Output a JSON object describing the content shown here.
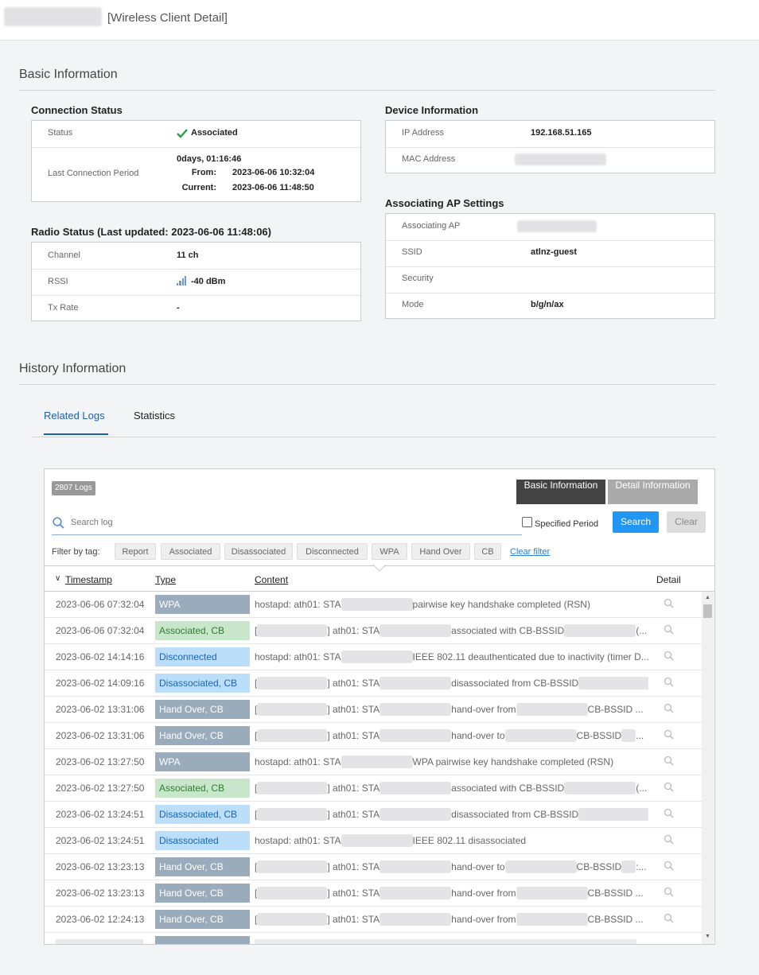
{
  "header": {
    "title": "[Wireless Client Detail]"
  },
  "basic": {
    "heading": "Basic Information",
    "connection": {
      "title": "Connection Status",
      "status_label": "Status",
      "status_value": "Associated",
      "period_label": "Last Connection Period",
      "period_value": "0days, 01:16:46",
      "from_label": "From:",
      "from_value": "2023-06-06 10:32:04",
      "current_label": "Current:",
      "current_value": "2023-06-06 11:48:50"
    },
    "radio": {
      "title": "Radio Status (Last updated: 2023-06-06 11:48:06)",
      "rows": [
        [
          "Channel",
          "11 ch"
        ],
        [
          "RSSI",
          "-40 dBm"
        ],
        [
          "Tx Rate",
          "-"
        ]
      ]
    },
    "device": {
      "title": "Device Information",
      "ip_label": "IP Address",
      "ip_value": "192.168.51.165",
      "mac_label": "MAC Address"
    },
    "ap": {
      "title": "Associating AP Settings",
      "ap_label": "Associating AP",
      "ssid_label": "SSID",
      "ssid_value": "atlnz-guest",
      "security_label": "Security",
      "mode_label": "Mode",
      "mode_value": "b/g/n/ax"
    }
  },
  "history": {
    "heading": "History Information",
    "tabs": [
      "Related Logs",
      "Statistics"
    ],
    "log_count": "2807 Logs",
    "view_buttons": [
      "Basic Information",
      "Detail Information"
    ],
    "search_placeholder": "Search log",
    "specified_period": "Specified Period",
    "search_button": "Search",
    "clear_button": "Clear",
    "filter_label": "Filter by tag:",
    "tags": [
      "Report",
      "Associated",
      "Disassociated",
      "Disconnected",
      "WPA",
      "Hand Over",
      "CB"
    ],
    "clear_filter": "Clear filter",
    "columns": [
      "Timestamp",
      "Type",
      "Content",
      "Detail"
    ],
    "rows": [
      {
        "timestamp": "2023-06-06 07:32:04",
        "type": "WPA",
        "type_bg": "#9aabbb",
        "type_fg": "#ffffff",
        "content": [
          "hostapd: ath01: STA",
          "pairwise key handshake completed (RSN)"
        ]
      },
      {
        "timestamp": "2023-06-06 07:32:04",
        "type": "Associated, CB",
        "type_bg": "#c8e6c9",
        "type_fg": "#2e7d32",
        "content": [
          "[",
          "] ath01: STA",
          "associated with CB-BSSID",
          "(..."
        ]
      },
      {
        "timestamp": "2023-06-02 14:14:16",
        "type": "Disconnected",
        "type_bg": "#bbdefb",
        "type_fg": "#1565c0",
        "content": [
          "hostapd: ath01: STA",
          "IEEE 802.11 deauthenticated due to inactivity (timer D..."
        ]
      },
      {
        "timestamp": "2023-06-02 14:09:16",
        "type": "Disassociated, CB",
        "type_bg": "#bbdefb",
        "type_fg": "#1565c0",
        "content": [
          "[",
          "] ath01: STA",
          "disassociated from CB-BSSID",
          ":..."
        ]
      },
      {
        "timestamp": "2023-06-02 13:31:06",
        "type": "Hand Over, CB",
        "type_bg": "#9aabbb",
        "type_fg": "#ffffff",
        "content": [
          "[",
          "] ath01: STA",
          "hand-over from",
          "CB-BSSID ..."
        ]
      },
      {
        "timestamp": "2023-06-02 13:31:06",
        "type": "Hand Over, CB",
        "type_bg": "#9aabbb",
        "type_fg": "#ffffff",
        "content": [
          "[",
          "] ath01: STA",
          "hand-over to",
          "CB-BSSID",
          "..."
        ]
      },
      {
        "timestamp": "2023-06-02 13:27:50",
        "type": "WPA",
        "type_bg": "#9aabbb",
        "type_fg": "#ffffff",
        "content": [
          "hostapd: ath01: STA",
          "WPA pairwise key handshake completed (RSN)"
        ]
      },
      {
        "timestamp": "2023-06-02 13:27:50",
        "type": "Associated, CB",
        "type_bg": "#c8e6c9",
        "type_fg": "#2e7d32",
        "content": [
          "[",
          "] ath01: STA",
          "associated with CB-BSSID",
          "(..."
        ]
      },
      {
        "timestamp": "2023-06-02 13:24:51",
        "type": "Disassociated, CB",
        "type_bg": "#bbdefb",
        "type_fg": "#1565c0",
        "content": [
          "[",
          "] ath01: STA",
          "disassociated from CB-BSSID",
          ":..."
        ]
      },
      {
        "timestamp": "2023-06-02 13:24:51",
        "type": "Disassociated",
        "type_bg": "#bbdefb",
        "type_fg": "#1565c0",
        "content": [
          "hostapd: ath01: STA",
          "IEEE 802.11 disassociated"
        ]
      },
      {
        "timestamp": "2023-06-02 13:23:13",
        "type": "Hand Over, CB",
        "type_bg": "#9aabbb",
        "type_fg": "#ffffff",
        "content": [
          "[",
          "] ath01: STA",
          "hand-over to",
          "CB-BSSID",
          ":..."
        ]
      },
      {
        "timestamp": "2023-06-02 13:23:13",
        "type": "Hand Over, CB",
        "type_bg": "#9aabbb",
        "type_fg": "#ffffff",
        "content": [
          "[",
          "] ath01: STA",
          "hand-over from",
          "CB-BSSID ..."
        ]
      },
      {
        "timestamp": "2023-06-02 12:24:13",
        "type": "Hand Over, CB",
        "type_bg": "#9aabbb",
        "type_fg": "#ffffff",
        "content": [
          "[",
          "] ath01: STA",
          "hand-over from",
          "CB-BSSID ..."
        ]
      }
    ]
  }
}
